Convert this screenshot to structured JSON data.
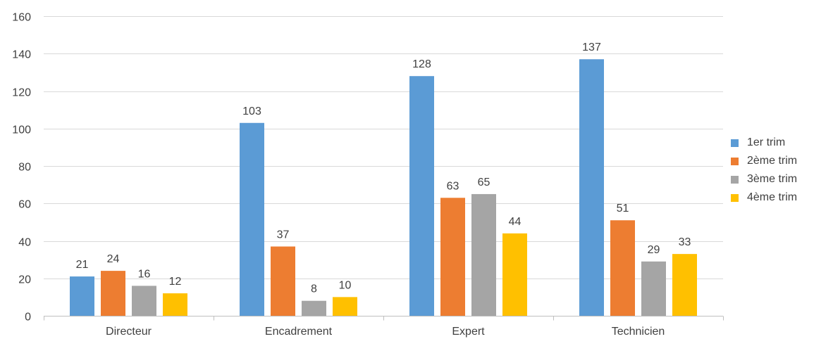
{
  "chart_data": {
    "type": "bar",
    "categories": [
      "Directeur",
      "Encadrement",
      "Expert",
      "Technicien"
    ],
    "series": [
      {
        "name": "1er trim",
        "values": [
          21,
          103,
          128,
          137
        ],
        "color": "#5b9bd5"
      },
      {
        "name": "2ème trim",
        "values": [
          24,
          37,
          63,
          51
        ],
        "color": "#ed7d31"
      },
      {
        "name": "3ème trim",
        "values": [
          16,
          8,
          65,
          29
        ],
        "color": "#a5a5a5"
      },
      {
        "name": "4ème trim",
        "values": [
          12,
          10,
          44,
          33
        ],
        "color": "#ffc000"
      }
    ],
    "yticks": [
      "0",
      "20",
      "40",
      "60",
      "80",
      "100",
      "120",
      "140",
      "160"
    ],
    "ylim": [
      0,
      160
    ],
    "grid": true,
    "legend_position": "right",
    "data_labels": true
  }
}
